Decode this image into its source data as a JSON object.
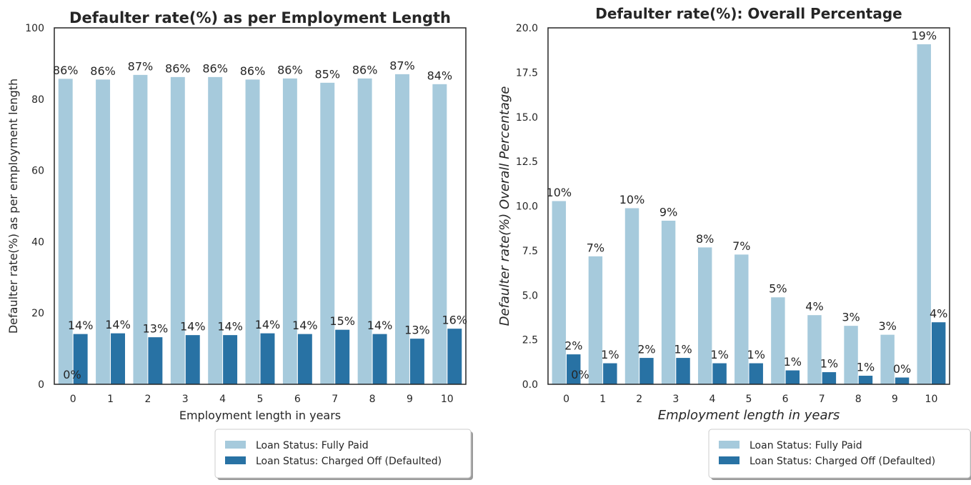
{
  "chart_data": [
    {
      "type": "bar",
      "title": "Defaulter rate(%) as per Employment Length",
      "xlabel": "Employment length in years",
      "ylabel": "Defaulter rate(%) as per employment length",
      "categories": [
        "0",
        "1",
        "2",
        "3",
        "4",
        "5",
        "6",
        "7",
        "8",
        "9",
        "10"
      ],
      "ylim": [
        0,
        100
      ],
      "yticks": [
        "0",
        "20",
        "40",
        "60",
        "80",
        "100"
      ],
      "grid": false,
      "legend_position": "bottom-right, below plot",
      "series": [
        {
          "name": "Loan Status: Fully Paid",
          "color": "#a6cadc",
          "values": [
            85.8,
            85.6,
            86.9,
            86.3,
            86.3,
            85.6,
            85.9,
            84.7,
            85.9,
            87.1,
            84.3
          ],
          "labels": [
            "86%",
            "86%",
            "87%",
            "86%",
            "86%",
            "86%",
            "86%",
            "85%",
            "86%",
            "87%",
            "84%"
          ]
        },
        {
          "name": "Loan Status: Charged Off (Defaulted)",
          "color": "#2872a4",
          "values": [
            14.2,
            14.4,
            13.3,
            13.9,
            13.9,
            14.4,
            14.2,
            15.4,
            14.2,
            12.9,
            15.7
          ],
          "labels": [
            "14%",
            "14%",
            "13%",
            "14%",
            "14%",
            "14%",
            "14%",
            "15%",
            "14%",
            "13%",
            "16%"
          ]
        }
      ],
      "extra_label": "0%"
    },
    {
      "type": "bar",
      "title": "Defaulter rate(%): Overall Percentage",
      "xlabel": "Employment length in years",
      "ylabel": "Defaulter rate(%) Overall Percentage",
      "categories": [
        "0",
        "1",
        "2",
        "3",
        "4",
        "5",
        "6",
        "7",
        "8",
        "9",
        "10"
      ],
      "ylim": [
        0,
        20
      ],
      "yticks": [
        "0.0",
        "2.5",
        "5.0",
        "7.5",
        "10.0",
        "12.5",
        "15.0",
        "17.5",
        "20.0"
      ],
      "grid": false,
      "legend_position": "bottom-right, below plot",
      "series": [
        {
          "name": "Loan Status: Fully Paid",
          "color": "#a6cadc",
          "values": [
            10.3,
            7.2,
            9.9,
            9.2,
            7.7,
            7.3,
            4.9,
            3.9,
            3.3,
            2.8,
            19.1
          ],
          "labels": [
            "10%",
            "7%",
            "10%",
            "9%",
            "8%",
            "7%",
            "5%",
            "4%",
            "3%",
            "3%",
            "19%"
          ]
        },
        {
          "name": "Loan Status: Charged Off (Defaulted)",
          "color": "#2872a4",
          "values": [
            1.7,
            1.2,
            1.5,
            1.5,
            1.2,
            1.2,
            0.8,
            0.7,
            0.5,
            0.4,
            3.5
          ],
          "labels": [
            "2%",
            "1%",
            "2%",
            "1%",
            "1%",
            "1%",
            "1%",
            "1%",
            "1%",
            "0%",
            "4%"
          ]
        }
      ],
      "extra_label": "0%"
    }
  ]
}
